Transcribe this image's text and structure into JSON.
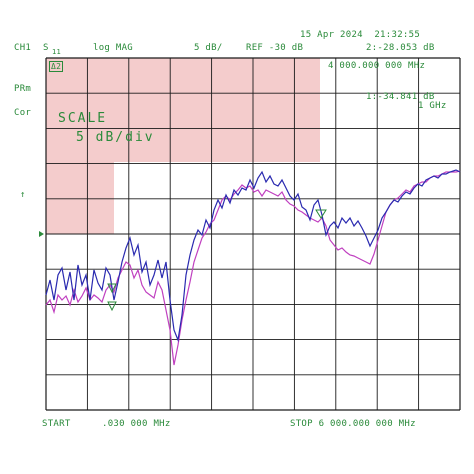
{
  "header": {
    "datetime": "15 Apr 2024  21:32:55",
    "channel": "CH1",
    "param": "S",
    "param_sub": "11",
    "format": "log MAG",
    "scale": "5 dB/",
    "reference": "REF -30 dB",
    "marker2_readout": "2:-28.053 dB"
  },
  "left_labels": {
    "prm": "PRm",
    "cor": "Cor",
    "ref_arrow": "↑"
  },
  "marker_box_label": "Δ2",
  "marker2_freq": "4 000.000 000 MHz",
  "marker1": {
    "readout": "1:-34.841 dB",
    "freq": "1 GHz"
  },
  "scale_box": {
    "line1": "SCALE",
    "line2": "5 dB/div"
  },
  "footer": {
    "start_label": "START",
    "start_value": ".030 000 MHz",
    "stop_label": "STOP 6 000.000 000 MHz"
  },
  "colors": {
    "grid": "#1a1a1a",
    "text": "#2a8a3a",
    "trace_blue": "#2a2ab0",
    "trace_magenta": "#c040c0",
    "highlight": "#f4cccc"
  }
}
